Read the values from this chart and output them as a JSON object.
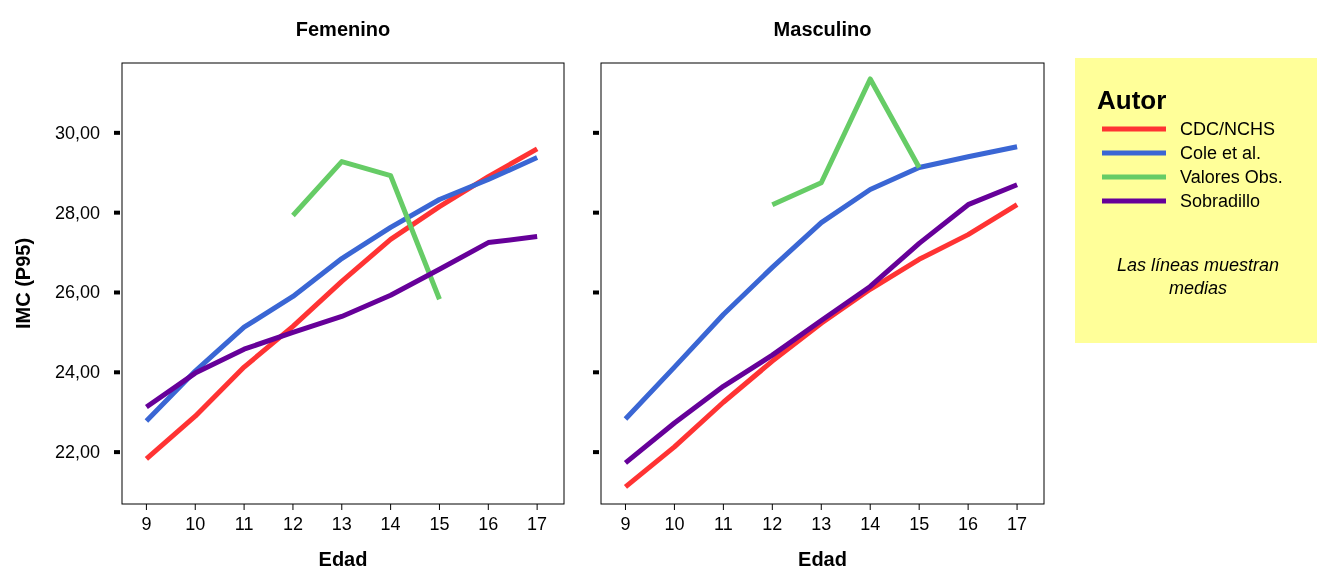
{
  "chart_data": [
    {
      "type": "line",
      "title": "Femenino",
      "xlabel": "Edad",
      "ylabel": "IMC (P95)",
      "x": [
        9,
        10,
        11,
        12,
        13,
        14,
        15,
        16,
        17
      ],
      "xlim": [
        8.5,
        17.55
      ],
      "xticks": [
        9,
        10,
        11,
        12,
        13,
        14,
        15,
        16,
        17
      ],
      "ylim": [
        20.7,
        31.75
      ],
      "yticks": [
        {
          "value": 22,
          "label": "22,00"
        },
        {
          "value": 24,
          "label": "24,00"
        },
        {
          "value": 26,
          "label": "26,00"
        },
        {
          "value": 28,
          "label": "28,00"
        },
        {
          "value": 30,
          "label": "30,00"
        }
      ],
      "grid": false,
      "line_style": "solid",
      "marker": "none",
      "series": [
        {
          "color": "#ff3333",
          "values": [
            21.83,
            22.9,
            24.13,
            25.15,
            26.28,
            27.33,
            28.15,
            28.9,
            29.6
          ]
        },
        {
          "color": "#3a66d4",
          "values": [
            22.78,
            24.03,
            25.13,
            25.9,
            26.85,
            27.63,
            28.33,
            28.83,
            29.38
          ]
        },
        {
          "color": "#66cc66",
          "values": [
            null,
            null,
            null,
            27.93,
            29.28,
            28.93,
            25.83,
            null,
            null
          ]
        },
        {
          "color": "#660099",
          "values": [
            23.13,
            23.98,
            24.58,
            25.0,
            25.4,
            25.93,
            26.58,
            27.25,
            27.4
          ]
        }
      ]
    },
    {
      "type": "line",
      "title": "Masculino",
      "xlabel": "Edad",
      "x": [
        9,
        10,
        11,
        12,
        13,
        14,
        15,
        16,
        17
      ],
      "xlim": [
        8.5,
        17.55
      ],
      "xticks": [
        9,
        10,
        11,
        12,
        13,
        14,
        15,
        16,
        17
      ],
      "ylim": [
        20.7,
        31.75
      ],
      "yticks": [
        {
          "value": 22,
          "label": null
        },
        {
          "value": 24,
          "label": null
        },
        {
          "value": 26,
          "label": null
        },
        {
          "value": 28,
          "label": null
        },
        {
          "value": 30,
          "label": null
        }
      ],
      "tick_labels": "x",
      "grid": false,
      "line_style": "solid",
      "marker": "none",
      "legend": "right",
      "legend_title": "Autor",
      "annotations": [
        "Las líneas muestran medias"
      ],
      "series": [
        {
          "name": "CDC/NCHS",
          "color": "#ff3333",
          "values": [
            21.13,
            22.13,
            23.25,
            24.28,
            25.23,
            26.08,
            26.83,
            27.45,
            28.2
          ]
        },
        {
          "name": "Cole et al.",
          "color": "#3a66d4",
          "values": [
            22.83,
            24.13,
            25.45,
            26.63,
            27.75,
            28.58,
            29.13,
            29.4,
            29.65
          ]
        },
        {
          "name": "Valores Obs.",
          "color": "#66cc66",
          "values": [
            null,
            null,
            null,
            28.2,
            28.75,
            31.35,
            29.13,
            null,
            null
          ]
        },
        {
          "name": "Sobradillo",
          "color": "#660099",
          "values": [
            21.73,
            22.73,
            23.65,
            24.43,
            25.3,
            26.15,
            27.23,
            28.2,
            28.7
          ]
        }
      ]
    }
  ]
}
